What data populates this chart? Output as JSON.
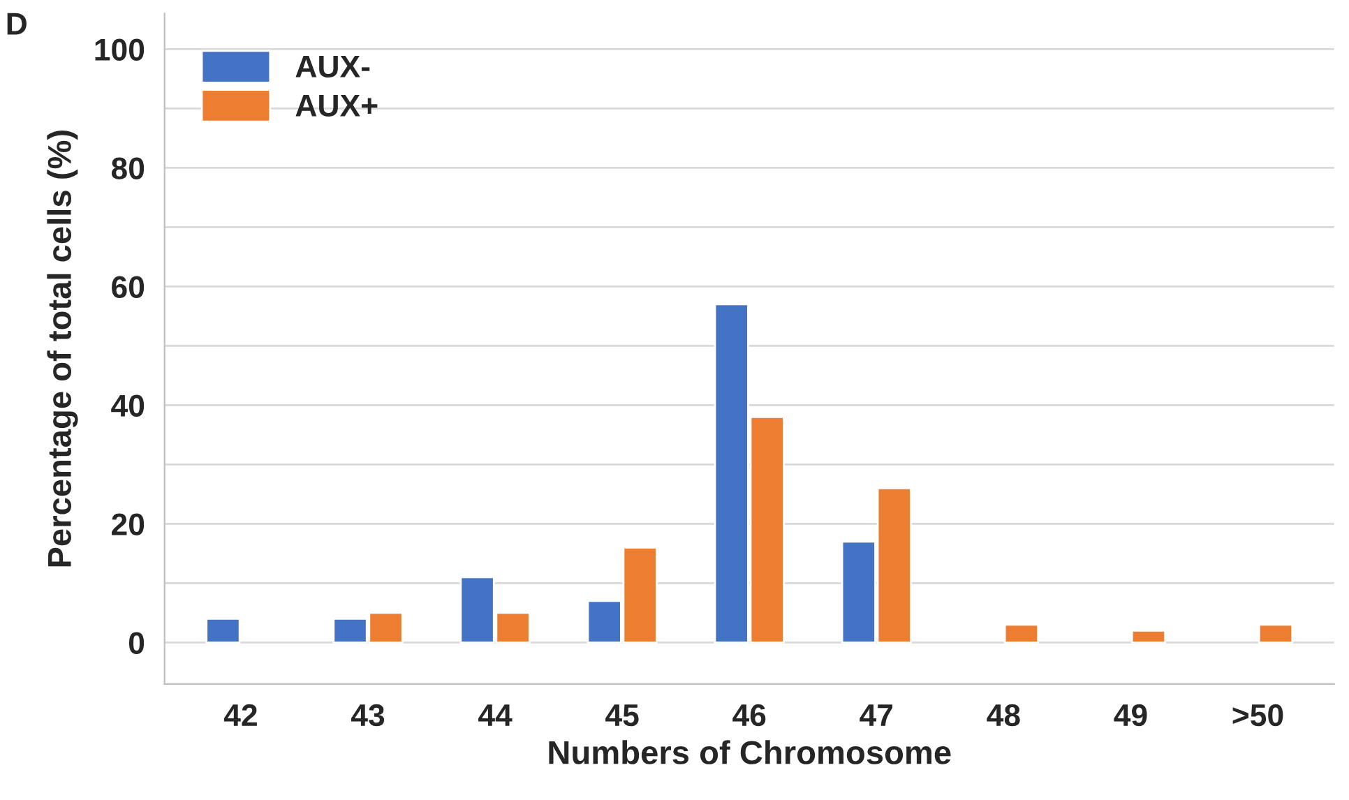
{
  "chart_data": {
    "type": "bar",
    "xlabel": "Numbers of Chromosome",
    "ylabel": "Percentage of total cells (%)",
    "annotations": [
      "D"
    ],
    "categories": [
      "42",
      "43",
      "44",
      "45",
      "46",
      "47",
      "48",
      "49",
      ">50"
    ],
    "series": [
      {
        "name": "AUX-",
        "color": "#4472c4",
        "values": [
          4,
          4,
          11,
          7,
          57,
          17,
          null,
          null,
          null
        ]
      },
      {
        "name": "AUX+",
        "color": "#ed7d31",
        "values": [
          null,
          5,
          5,
          16,
          38,
          26,
          3,
          2,
          3
        ]
      }
    ],
    "ylim": [
      -7,
      106
    ],
    "yticks": [
      0,
      {
        "value": 10,
        "label": null
      },
      20,
      {
        "value": 30,
        "label": null
      },
      40,
      {
        "value": 50,
        "label": null
      },
      60,
      {
        "value": 70,
        "label": null
      },
      80,
      {
        "value": 90,
        "label": null
      },
      100
    ],
    "grid": "y",
    "legend": "top left"
  }
}
